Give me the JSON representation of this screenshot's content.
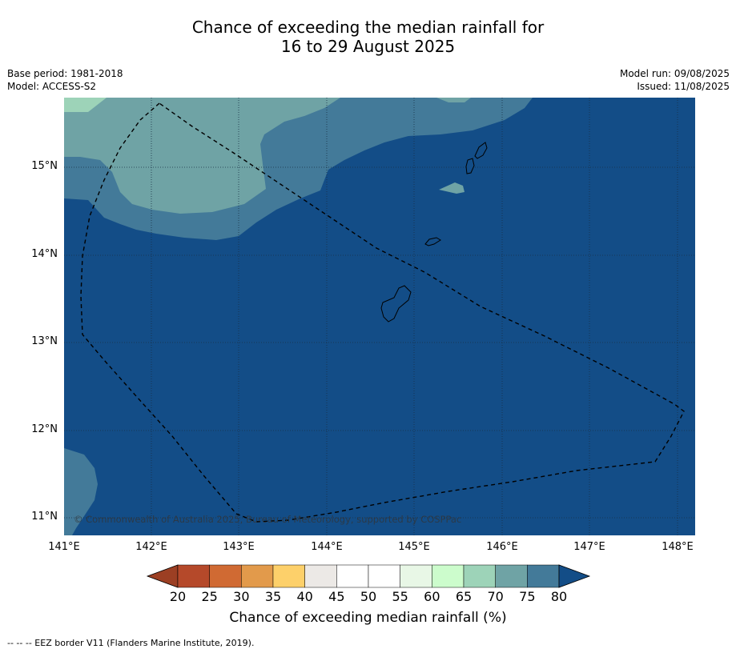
{
  "header": {
    "title_line1": "Chance of exceeding the median rainfall for",
    "title_line2": "16 to 29 August 2025",
    "base_period": "Base period: 1981-2018",
    "model": "Model: ACCESS-S2",
    "model_run": "Model run: 09/08/2025",
    "issued": "Issued: 11/08/2025"
  },
  "map": {
    "lat_labels": [
      "15°N",
      "14°N",
      "13°N",
      "12°N",
      "11°N"
    ],
    "lon_labels": [
      "141°E",
      "142°E",
      "143°E",
      "144°E",
      "145°E",
      "146°E",
      "147°E",
      "148°E"
    ],
    "copyright": "© Commonwealth of Australia 2025, Bureau of Meteorology, supported by COSPPac"
  },
  "colorbar": {
    "ticks": [
      "20",
      "25",
      "30",
      "35",
      "40",
      "45",
      "50",
      "55",
      "60",
      "65",
      "70",
      "75",
      "80"
    ],
    "colors": [
      "#b5492a",
      "#d06a33",
      "#e29a4b",
      "#fdd06a",
      "#ece9e6",
      "#ffffff",
      "#ffffff",
      "#e8f7e6",
      "#ccfccc",
      "#9dd3b8",
      "#6fa3a5",
      "#437a99"
    ],
    "below_color": "#9c3f23",
    "above_color": "#134d87",
    "title": "Chance of exceeding median rainfall (%)"
  },
  "footer": {
    "note": "--  --  -- EEZ border V11 (Flanders Marine Institute, 2019)."
  }
}
